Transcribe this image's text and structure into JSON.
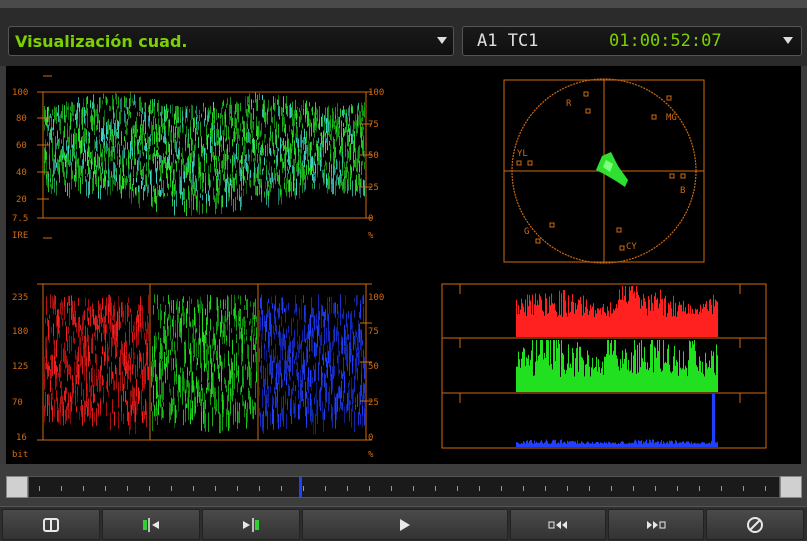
{
  "header": {
    "view_label": "Visualización cuad.",
    "track_label": "A1 TC1",
    "timecode": "01:00:52:07"
  },
  "scopes": {
    "waveform": {
      "left_ticks": [
        "100",
        "80",
        "60",
        "40",
        "20",
        "7.5"
      ],
      "left_unit": "IRE",
      "right_ticks": [
        "100",
        "75",
        "50",
        "25",
        "0"
      ],
      "right_unit": "%"
    },
    "vectorscope": {
      "targets": [
        "R",
        "MG",
        "YL",
        "B",
        "G",
        "CY"
      ]
    },
    "rgb_parade": {
      "left_ticks": [
        "235",
        "180",
        "125",
        "70",
        "16"
      ],
      "left_unit": "bit",
      "right_ticks": [
        "100",
        "75",
        "50",
        "25",
        "0"
      ],
      "right_unit": "%"
    },
    "histogram": {
      "channels": [
        "red",
        "green",
        "blue"
      ]
    }
  },
  "timeline": {
    "playhead_position": 0.36
  },
  "toolbar": {
    "buttons": [
      "quad-view",
      "mark-in",
      "mark-out",
      "play",
      "rewind",
      "fast-forward",
      "clear"
    ]
  },
  "colors": {
    "accent_green": "#7cd000",
    "scope_orange": "#d06a10",
    "red": "#ff2020",
    "green": "#20e020",
    "blue": "#2040ff"
  }
}
